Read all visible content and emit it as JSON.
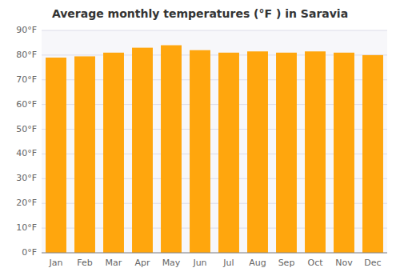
{
  "chart_data": {
    "type": "bar",
    "title": "Average monthly temperatures (°F ) in Saravia",
    "categories": [
      "Jan",
      "Feb",
      "Mar",
      "Apr",
      "May",
      "Jun",
      "Jul",
      "Aug",
      "Sep",
      "Oct",
      "Nov",
      "Dec"
    ],
    "values": [
      79,
      79.5,
      81,
      83,
      84,
      82,
      81,
      81.5,
      81,
      81.5,
      81,
      80
    ],
    "color": "#FFA60D",
    "ylim": [
      0,
      90
    ],
    "yticks": [
      {
        "value": 0,
        "label": "0°F"
      },
      {
        "value": 10,
        "label": "10°F"
      },
      {
        "value": 20,
        "label": "20°F"
      },
      {
        "value": 30,
        "label": "30°F"
      },
      {
        "value": 40,
        "label": "40°F"
      },
      {
        "value": 50,
        "label": "50°F"
      },
      {
        "value": 60,
        "label": "60°F"
      },
      {
        "value": 70,
        "label": "70°F"
      },
      {
        "value": 80,
        "label": "80°F"
      },
      {
        "value": 90,
        "label": "90°F"
      }
    ],
    "grid": true
  }
}
